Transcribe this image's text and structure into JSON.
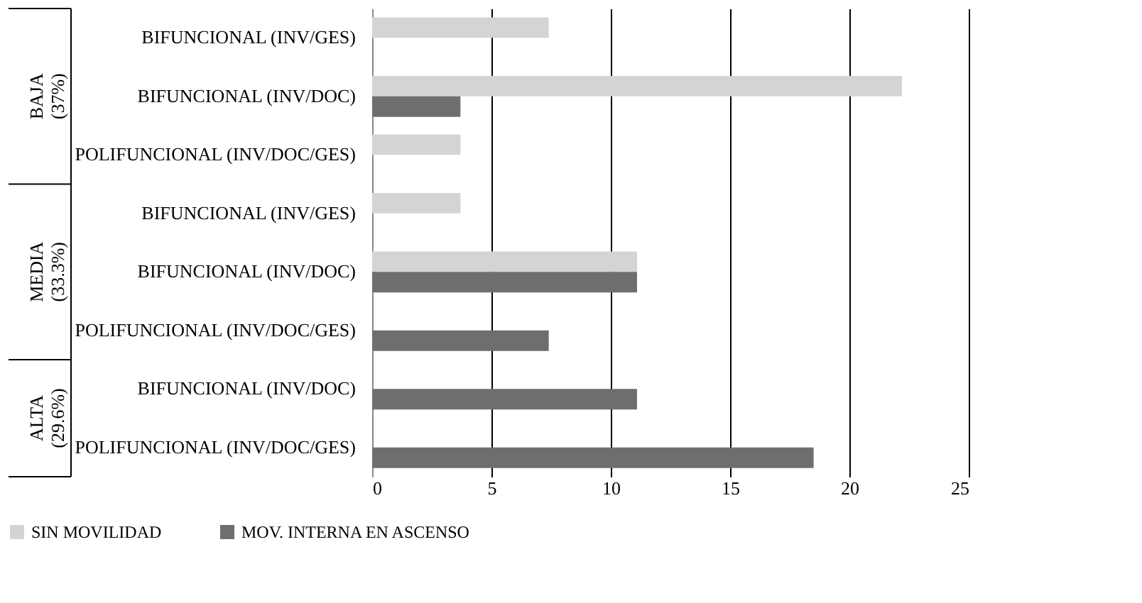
{
  "chart_data": {
    "type": "bar",
    "orientation": "horizontal",
    "categories": [
      "BIFUNCIONAL (INV/GES)",
      "BIFUNCIONAL (INV/DOC)",
      "POLIFUNCIONAL (INV/DOC/GES)",
      "BIFUNCIONAL (INV/GES)",
      "BIFUNCIONAL (INV/DOC)",
      "POLIFUNCIONAL (INV/DOC/GES)",
      "BIFUNCIONAL (INV/DOC)",
      "POLIFUNCIONAL (INV/DOC/GES)"
    ],
    "series": [
      {
        "name": "SIN MOVILIDAD",
        "color": "#d4d4d4",
        "values": [
          7.4,
          22.2,
          3.7,
          3.7,
          11.1,
          null,
          null,
          null
        ]
      },
      {
        "name": "MOV. INTERNA EN ASCENSO",
        "color": "#6e6e6e",
        "values": [
          null,
          3.7,
          null,
          null,
          11.1,
          7.4,
          11.1,
          18.5
        ]
      }
    ],
    "annotations": [
      "BAJA (37%)",
      "MEDIA (33.3%)",
      "ALTA (29.6%)"
    ],
    "xlim": [
      0,
      25
    ],
    "xticks": [
      0,
      5,
      10,
      15,
      20,
      25
    ],
    "grid": "x",
    "legend": "bottom"
  }
}
